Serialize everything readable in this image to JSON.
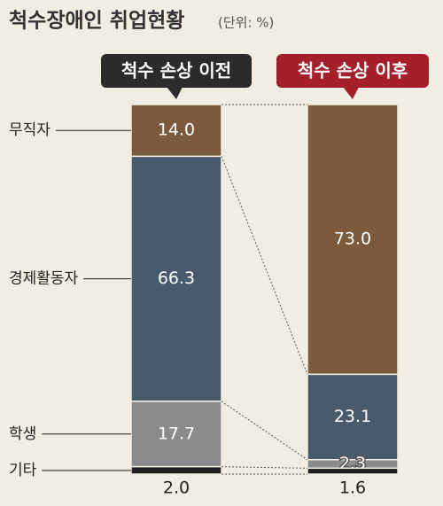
{
  "chart_data": {
    "type": "stacked_bar",
    "title": "척수장애인 취업현황",
    "subtitle": "(단위: %)",
    "categories": [
      "척수 손상 이전",
      "척수 손상 이후"
    ],
    "series": [
      {
        "name": "무직자",
        "color": "#7b5b3b",
        "values": [
          14.0,
          73.0
        ],
        "value_labels": [
          "14.0",
          "73.0"
        ]
      },
      {
        "name": "경제활동자",
        "color": "#4a5a6d",
        "values": [
          66.3,
          23.1
        ]
      },
      {
        "name": "학생",
        "color": "#8a8b8c",
        "values": [
          17.7,
          2.3
        ]
      },
      {
        "name": "기타",
        "color": "#1e1e1e",
        "values": [
          2.0,
          1.6
        ],
        "value_labels": [
          "2.0",
          "1.6"
        ]
      }
    ]
  }
}
